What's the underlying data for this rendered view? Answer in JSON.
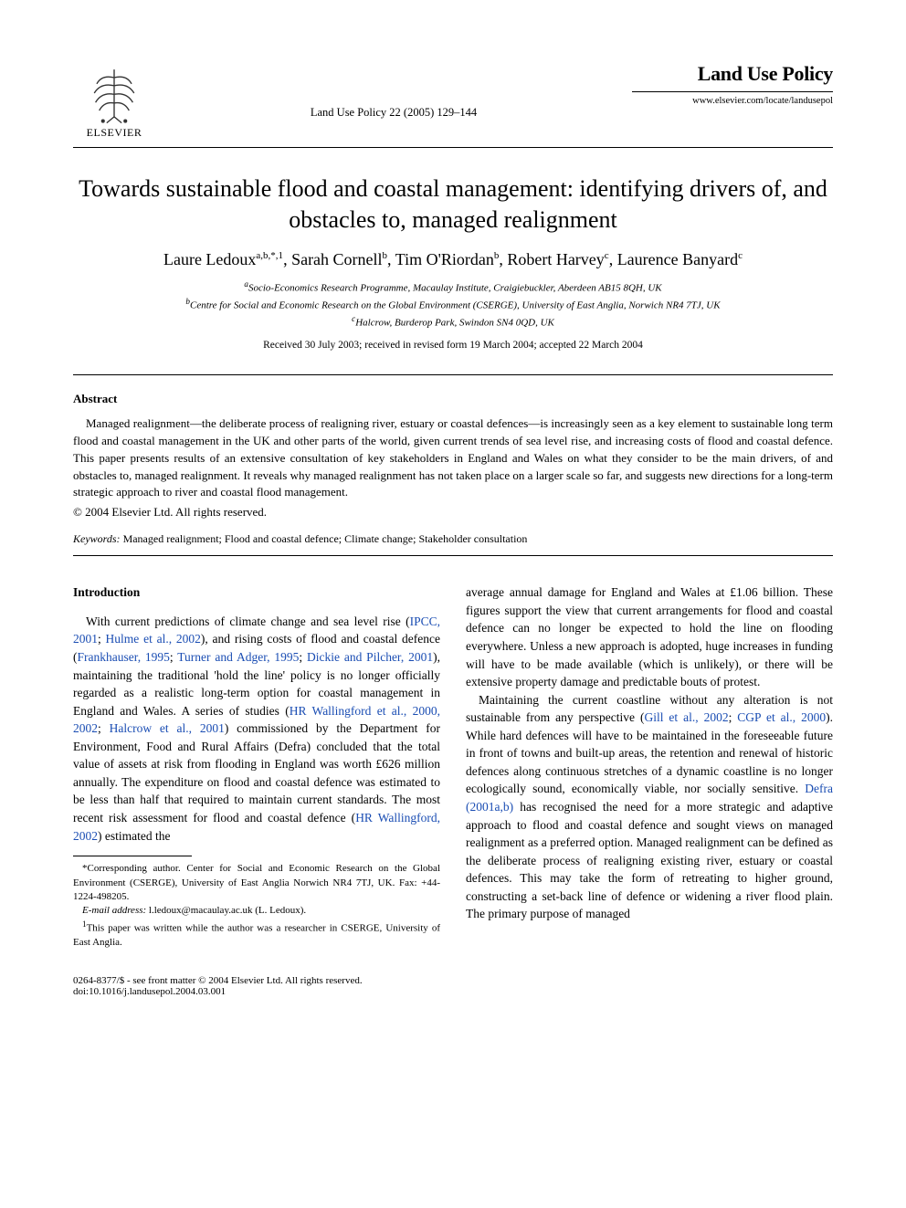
{
  "header": {
    "publisher": "ELSEVIER",
    "citation": "Land Use Policy 22 (2005) 129–144",
    "journal_name": "Land Use Policy",
    "journal_url": "www.elsevier.com/locate/landusepol"
  },
  "article": {
    "title": "Towards sustainable flood and coastal management: identifying drivers of, and obstacles to, managed realignment",
    "authors_html": "Laure Ledoux<sup>a,b,*,1</sup>, Sarah Cornell<sup>b</sup>, Tim O'Riordan<sup>b</sup>, Robert Harvey<sup>c</sup>, Laurence Banyard<sup>c</sup>",
    "affiliations": {
      "a": "Socio-Economics Research Programme, Macaulay Institute, Craigiebuckler, Aberdeen AB15 8QH, UK",
      "b": "Centre for Social and Economic Research on the Global Environment (CSERGE), University of East Anglia, Norwich NR4 7TJ, UK",
      "c": "Halcrow, Burderop Park, Swindon SN4 0QD, UK"
    },
    "dates": "Received 30 July 2003; received in revised form 19 March 2004; accepted 22 March 2004"
  },
  "abstract": {
    "heading": "Abstract",
    "text": "Managed realignment—the deliberate process of realigning river, estuary or coastal defences—is increasingly seen as a key element to sustainable long term flood and coastal management in the UK and other parts of the world, given current trends of sea level rise, and increasing costs of flood and coastal defence. This paper presents results of an extensive consultation of key stakeholders in England and Wales on what they consider to be the main drivers, of and obstacles to, managed realignment. It reveals why managed realignment has not taken place on a larger scale so far, and suggests new directions for a long-term strategic approach to river and coastal flood management.",
    "copyright": "© 2004 Elsevier Ltd. All rights reserved.",
    "keywords_label": "Keywords:",
    "keywords": "Managed realignment; Flood and coastal defence; Climate change; Stakeholder consultation"
  },
  "body": {
    "intro_heading": "Introduction",
    "col1_p1_a": "With current predictions of climate change and sea level rise (",
    "col1_p1_ref1": "IPCC, 2001",
    "col1_p1_b": "; ",
    "col1_p1_ref2": "Hulme et al., 2002",
    "col1_p1_c": "), and rising costs of flood and coastal defence (",
    "col1_p1_ref3": "Frankhauser, 1995",
    "col1_p1_d": "; ",
    "col1_p1_ref4": "Turner and Adger, 1995",
    "col1_p1_e": "; ",
    "col1_p1_ref5": "Dickie and Pilcher, 2001",
    "col1_p1_f": "), maintaining the traditional 'hold the line' policy is no longer officially regarded as a realistic long-term option for coastal management in England and Wales. A series of studies (",
    "col1_p1_ref6": "HR Wallingford et al., 2000, 2002",
    "col1_p1_g": "; ",
    "col1_p1_ref7": "Halcrow et al., 2001",
    "col1_p1_h": ") commissioned by the Department for Environment, Food and Rural Affairs (Defra) concluded that the total value of assets at risk from flooding in England was worth £626 million annually. The expenditure on flood and coastal defence was estimated to be less than half that required to maintain current standards. The most recent risk assessment for flood and coastal defence (",
    "col1_p1_ref8": "HR Wallingford, 2002",
    "col1_p1_i": ") estimated the",
    "col2_p1": "average annual damage for England and Wales at £1.06 billion. These figures support the view that current arrangements for flood and coastal defence can no longer be expected to hold the line on flooding everywhere. Unless a new approach is adopted, huge increases in funding will have to be made available (which is unlikely), or there will be extensive property damage and predictable bouts of protest.",
    "col2_p2_a": "Maintaining the current coastline without any alteration is not sustainable from any perspective (",
    "col2_p2_ref1": "Gill et al., 2002",
    "col2_p2_b": "; ",
    "col2_p2_ref2": "CGP et al., 2000",
    "col2_p2_c": "). While hard defences will have to be maintained in the foreseeable future in front of towns and built-up areas, the retention and renewal of historic defences along continuous stretches of a dynamic coastline is no longer ecologically sound, economically viable, nor socially sensitive. ",
    "col2_p2_ref3": "Defra (2001a,b)",
    "col2_p2_d": " has recognised the need for a more strategic and adaptive approach to flood and coastal defence and sought views on managed realignment as a preferred option. Managed realignment can be defined as the deliberate process of realigning existing river, estuary or coastal defences. This may take the form of retreating to higher ground, constructing a set-back line of defence or widening a river flood plain. The primary purpose of managed"
  },
  "footnotes": {
    "corr": "*Corresponding author. Center for Social and Economic Research on the Global Environment (CSERGE), University of East Anglia Norwich NR4 7TJ, UK. Fax: +44-1224-498205.",
    "email_label": "E-mail address:",
    "email": "l.ledoux@macaulay.ac.uk (L. Ledoux).",
    "note1": "This paper was written while the author was a researcher in CSERGE, University of East Anglia."
  },
  "footer": {
    "issn": "0264-8377/$ - see front matter © 2004 Elsevier Ltd. All rights reserved.",
    "doi": "doi:10.1016/j.landusepol.2004.03.001"
  },
  "colors": {
    "link": "#1a4db3",
    "text": "#000000",
    "background": "#ffffff"
  }
}
